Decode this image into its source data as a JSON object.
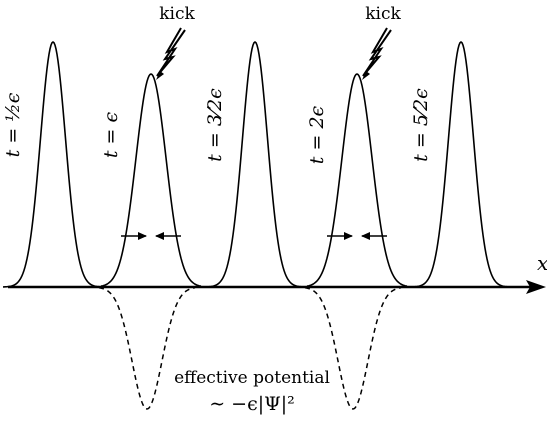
{
  "axis": {
    "label": "x"
  },
  "peaks": [
    {
      "t_label": "t = ½ϵ"
    },
    {
      "t_label": "t = ϵ",
      "kick": true
    },
    {
      "t_label": "t = 3⁄2ϵ"
    },
    {
      "t_label": "t = 2ϵ",
      "kick": true
    },
    {
      "t_label": "t = 5⁄2ϵ"
    }
  ],
  "kick_label": "kick",
  "potential_label": {
    "line1": "effective potential",
    "line2": "∼ −ϵ|Ψ|²"
  }
}
